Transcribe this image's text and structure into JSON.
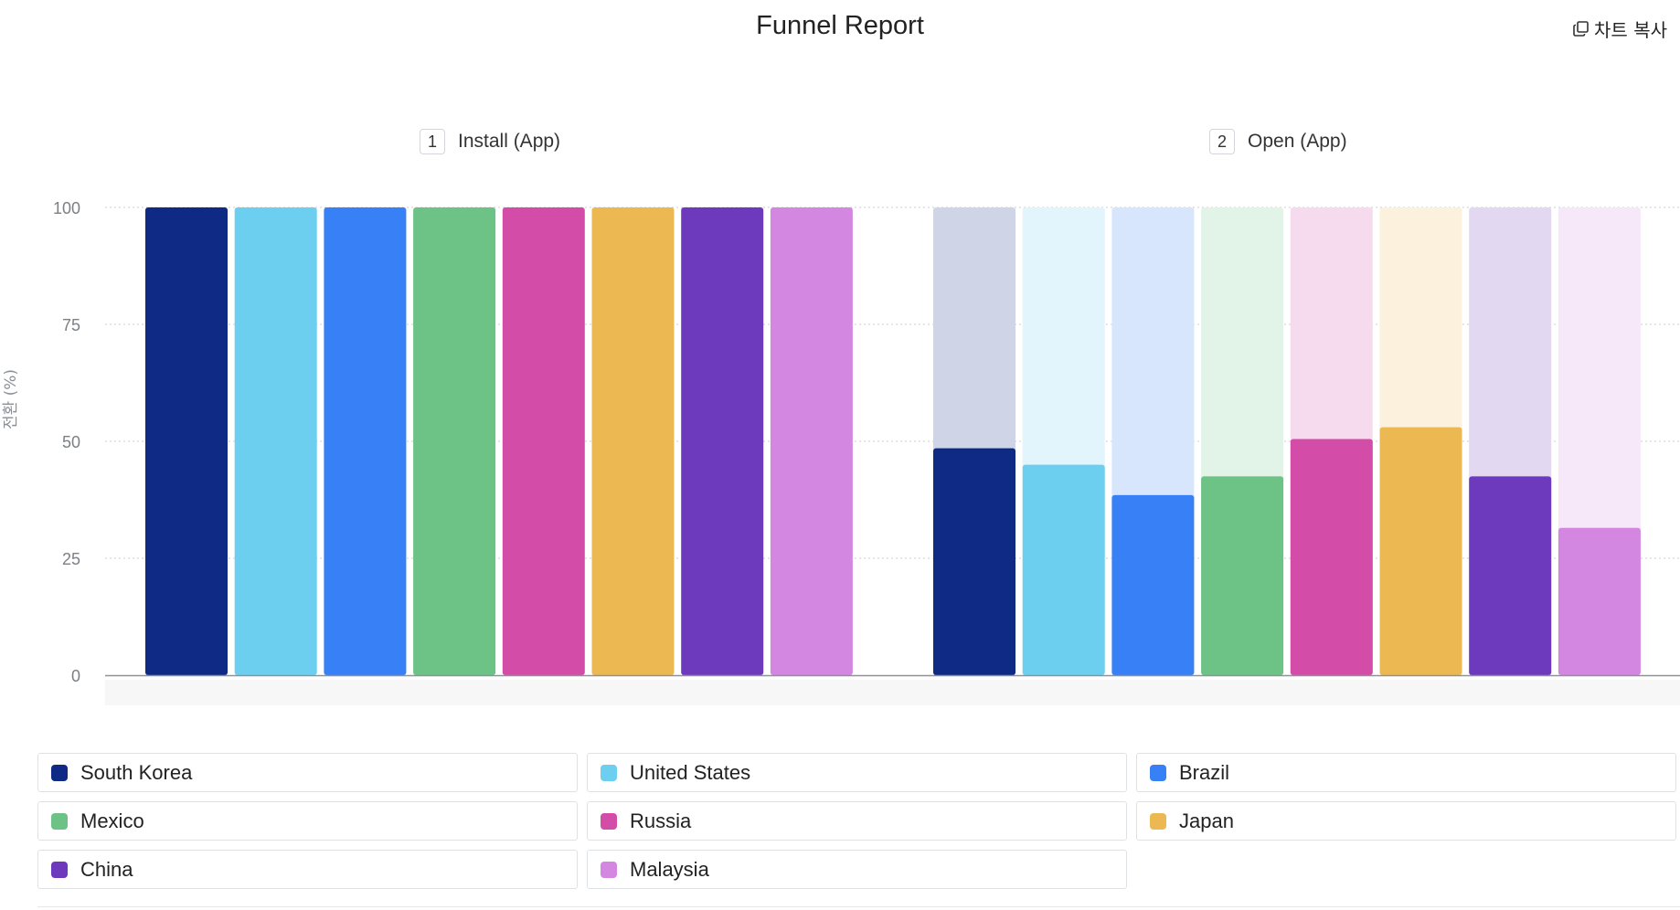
{
  "header": {
    "title": "Funnel Report",
    "copy_label": "차트 복사",
    "copy_icon": "copy-icon"
  },
  "steps": [
    {
      "number": "1",
      "label": "Install (App)"
    },
    {
      "number": "2",
      "label": "Open (App)"
    }
  ],
  "chart_data": {
    "type": "bar",
    "title": "Funnel Report",
    "ylabel": "전환 (%)",
    "xlabel": "",
    "ylim": [
      0,
      100
    ],
    "yticks": [
      0,
      25,
      50,
      75,
      100
    ],
    "grid": true,
    "legend_position": "bottom",
    "categories": [
      "Install (App)",
      "Open (App)"
    ],
    "series": [
      {
        "name": "South Korea",
        "color": "#0f2a85",
        "values": [
          100,
          48.5
        ]
      },
      {
        "name": "United States",
        "color": "#6ccff0",
        "values": [
          100,
          45
        ]
      },
      {
        "name": "Brazil",
        "color": "#3880f5",
        "values": [
          100,
          38.5
        ]
      },
      {
        "name": "Mexico",
        "color": "#6dc285",
        "values": [
          100,
          42.5
        ]
      },
      {
        "name": "Russia",
        "color": "#d24ca8",
        "values": [
          100,
          50.5
        ]
      },
      {
        "name": "Japan",
        "color": "#ecb851",
        "values": [
          100,
          53
        ]
      },
      {
        "name": "China",
        "color": "#6e3abd",
        "values": [
          100,
          42.5
        ]
      },
      {
        "name": "Malaysia",
        "color": "#d487e0",
        "values": [
          100,
          31.5
        ]
      }
    ]
  }
}
